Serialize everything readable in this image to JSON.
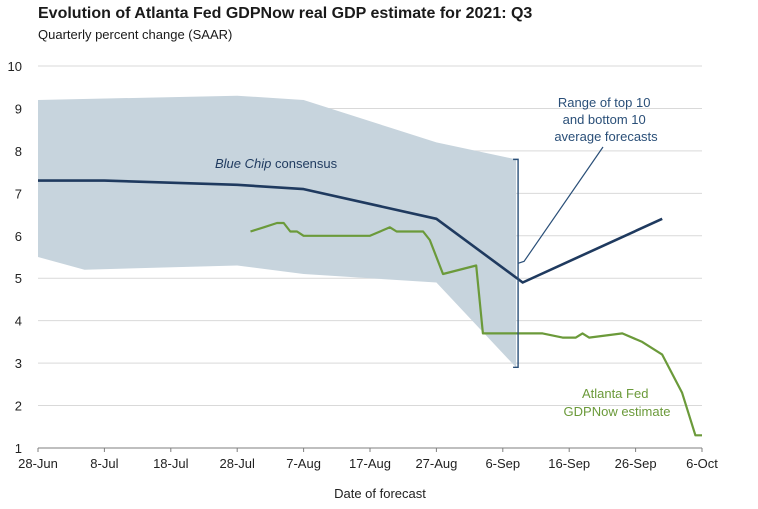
{
  "chart_data": {
    "type": "line",
    "title": "Evolution of Atlanta Fed GDPNow real GDP estimate for 2021: Q3",
    "subtitle": "Quarterly percent change (SAAR)",
    "xlabel": "Date of forecast",
    "ylabel": "",
    "ylim": [
      1,
      10
    ],
    "yticks": [
      "1",
      "2",
      "3",
      "4",
      "5",
      "6",
      "7",
      "8",
      "9",
      "10"
    ],
    "xlim": [
      "2021-06-28",
      "2021-10-06"
    ],
    "xticks": [
      {
        "date": "2021-06-28",
        "label": "28-Jun"
      },
      {
        "date": "2021-07-08",
        "label": "8-Jul"
      },
      {
        "date": "2021-07-18",
        "label": "18-Jul"
      },
      {
        "date": "2021-07-28",
        "label": "28-Jul"
      },
      {
        "date": "2021-08-07",
        "label": "7-Aug"
      },
      {
        "date": "2021-08-17",
        "label": "17-Aug"
      },
      {
        "date": "2021-08-27",
        "label": "27-Aug"
      },
      {
        "date": "2021-09-06",
        "label": "6-Sep"
      },
      {
        "date": "2021-09-16",
        "label": "16-Sep"
      },
      {
        "date": "2021-09-26",
        "label": "26-Sep"
      },
      {
        "date": "2021-10-06",
        "label": "6-Oct"
      }
    ],
    "grid": "horizontal",
    "colors": {
      "blue_chip": "#1f3a5f",
      "gdpnow": "#6b9a3a",
      "range_fill": "#c7d4dd",
      "range_annotation": "#2a4f78",
      "grid": "#d9d9d9"
    },
    "range_band": {
      "upper": [
        {
          "x": "2021-06-28",
          "y": 9.2
        },
        {
          "x": "2021-07-28",
          "y": 9.3
        },
        {
          "x": "2021-08-07",
          "y": 9.2
        },
        {
          "x": "2021-08-27",
          "y": 8.2
        },
        {
          "x": "2021-09-08",
          "y": 7.8
        }
      ],
      "lower": [
        {
          "x": "2021-09-08",
          "y": 2.9
        },
        {
          "x": "2021-08-27",
          "y": 4.9
        },
        {
          "x": "2021-08-07",
          "y": 5.1
        },
        {
          "x": "2021-07-28",
          "y": 5.3
        },
        {
          "x": "2021-07-05",
          "y": 5.2
        },
        {
          "x": "2021-06-28",
          "y": 5.5
        }
      ]
    },
    "series": [
      {
        "name": "Blue Chip consensus",
        "points": [
          {
            "x": "2021-06-28",
            "y": 7.3
          },
          {
            "x": "2021-07-08",
            "y": 7.3
          },
          {
            "x": "2021-07-28",
            "y": 7.2
          },
          {
            "x": "2021-08-07",
            "y": 7.1
          },
          {
            "x": "2021-08-27",
            "y": 6.4
          },
          {
            "x": "2021-09-09",
            "y": 4.9
          },
          {
            "x": "2021-09-30",
            "y": 6.4
          }
        ]
      },
      {
        "name": "Atlanta Fed GDPNow estimate",
        "points": [
          {
            "x": "2021-07-30",
            "y": 6.1
          },
          {
            "x": "2021-08-01",
            "y": 6.2
          },
          {
            "x": "2021-08-03",
            "y": 6.3
          },
          {
            "x": "2021-08-04",
            "y": 6.3
          },
          {
            "x": "2021-08-05",
            "y": 6.1
          },
          {
            "x": "2021-08-06",
            "y": 6.1
          },
          {
            "x": "2021-08-07",
            "y": 6.0
          },
          {
            "x": "2021-08-13",
            "y": 6.0
          },
          {
            "x": "2021-08-17",
            "y": 6.0
          },
          {
            "x": "2021-08-20",
            "y": 6.2
          },
          {
            "x": "2021-08-21",
            "y": 6.1
          },
          {
            "x": "2021-08-25",
            "y": 6.1
          },
          {
            "x": "2021-08-26",
            "y": 5.9
          },
          {
            "x": "2021-08-28",
            "y": 5.1
          },
          {
            "x": "2021-09-02",
            "y": 5.3
          },
          {
            "x": "2021-09-03",
            "y": 3.7
          },
          {
            "x": "2021-09-12",
            "y": 3.7
          },
          {
            "x": "2021-09-15",
            "y": 3.6
          },
          {
            "x": "2021-09-17",
            "y": 3.6
          },
          {
            "x": "2021-09-18",
            "y": 3.7
          },
          {
            "x": "2021-09-19",
            "y": 3.6
          },
          {
            "x": "2021-09-24",
            "y": 3.7
          },
          {
            "x": "2021-09-27",
            "y": 3.5
          },
          {
            "x": "2021-09-30",
            "y": 3.2
          },
          {
            "x": "2021-10-03",
            "y": 2.3
          },
          {
            "x": "2021-10-05",
            "y": 1.3
          },
          {
            "x": "2021-10-06",
            "y": 1.3
          }
        ]
      }
    ],
    "annotations": {
      "blue_chip_label_italic": "Blue Chip",
      "blue_chip_label_rest": " consensus",
      "gdpnow_label": [
        "Atlanta Fed",
        "GDPNow estimate"
      ],
      "range_label": [
        "Range of top 10",
        "and bottom 10",
        "average forecasts"
      ]
    }
  }
}
